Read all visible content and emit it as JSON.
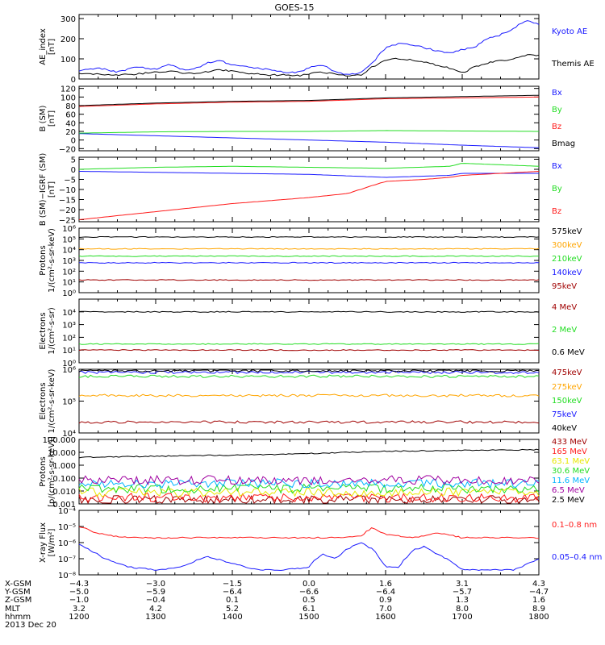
{
  "title": "GOES-15",
  "colors": {
    "blue": "#1a1aff",
    "black": "#000000",
    "red": "#ff1a1a",
    "green": "#22dd22",
    "dkred": "#a00000",
    "orange": "#ffa500",
    "yellow": "#e8e800",
    "cyan": "#00b4ff",
    "brown": "#a0522d",
    "purple": "#a000a0"
  },
  "chart_data": [
    {
      "id": "ae",
      "type": "line",
      "scale": "linear",
      "ylabel": [
        "AE_index",
        "[nT]"
      ],
      "ylim": [
        0,
        320
      ],
      "yticks": [
        "0",
        "100",
        "200",
        "300"
      ],
      "ytick_values": [
        0,
        100,
        200,
        300
      ],
      "series": [
        {
          "name": "Kyoto AE",
          "color": "blue",
          "x": [
            1200,
            1215,
            1230,
            1245,
            1300,
            1310,
            1320,
            1330,
            1340,
            1350,
            1400,
            1410,
            1420,
            1430,
            1440,
            1450,
            1500,
            1510,
            1520,
            1530,
            1540,
            1550,
            1600,
            1610,
            1620,
            1630,
            1640,
            1650,
            1700,
            1710,
            1720,
            1730,
            1740,
            1750,
            1800
          ],
          "y": [
            40,
            55,
            35,
            60,
            50,
            75,
            45,
            50,
            80,
            90,
            70,
            60,
            55,
            45,
            35,
            30,
            55,
            70,
            40,
            20,
            30,
            80,
            160,
            175,
            170,
            155,
            140,
            130,
            145,
            160,
            200,
            220,
            250,
            290,
            270
          ]
        },
        {
          "name": "Themis AE",
          "color": "black",
          "x": [
            1200,
            1215,
            1230,
            1245,
            1300,
            1310,
            1320,
            1330,
            1340,
            1350,
            1400,
            1410,
            1420,
            1430,
            1440,
            1450,
            1500,
            1510,
            1520,
            1530,
            1540,
            1550,
            1600,
            1610,
            1620,
            1630,
            1640,
            1650,
            1700,
            1710,
            1720,
            1730,
            1740,
            1750,
            1800
          ],
          "y": [
            30,
            25,
            20,
            25,
            35,
            40,
            30,
            25,
            35,
            45,
            40,
            30,
            25,
            20,
            20,
            15,
            25,
            35,
            25,
            15,
            20,
            60,
            95,
            100,
            95,
            85,
            70,
            55,
            30,
            60,
            80,
            90,
            100,
            120,
            115
          ]
        }
      ]
    },
    {
      "id": "bsm",
      "type": "line",
      "scale": "linear",
      "ylabel": [
        "B (SM)",
        "[nT]"
      ],
      "ylim": [
        -25,
        125
      ],
      "yticks": [
        "−20",
        "0",
        "20",
        "40",
        "60",
        "80",
        "100",
        "120"
      ],
      "ytick_values": [
        -20,
        0,
        20,
        40,
        60,
        80,
        100,
        120
      ],
      "series": [
        {
          "name": "Bx",
          "color": "blue",
          "x": [
            1200,
            1300,
            1400,
            1500,
            1600,
            1700,
            1800
          ],
          "y": [
            15,
            10,
            5,
            0,
            -5,
            -12,
            -18
          ]
        },
        {
          "name": "By",
          "color": "green",
          "x": [
            1200,
            1300,
            1400,
            1500,
            1600,
            1700,
            1800
          ],
          "y": [
            16,
            19,
            20,
            20,
            22,
            21,
            20
          ]
        },
        {
          "name": "Bz",
          "color": "red",
          "x": [
            1200,
            1300,
            1400,
            1500,
            1600,
            1700,
            1800
          ],
          "y": [
            78,
            84,
            88,
            90,
            96,
            98,
            100
          ]
        },
        {
          "name": "Bmag",
          "color": "black",
          "x": [
            1200,
            1300,
            1400,
            1500,
            1600,
            1700,
            1800
          ],
          "y": [
            80,
            86,
            90,
            92,
            98,
            101,
            104
          ]
        }
      ]
    },
    {
      "id": "bsmigrf",
      "type": "line",
      "scale": "linear",
      "ylabel": [
        "B (SM)−IGRF (SM)",
        "[nT]"
      ],
      "ylim": [
        -26,
        6
      ],
      "yticks": [
        "−25",
        "−20",
        "−15",
        "−10",
        "−5",
        "0",
        "5"
      ],
      "ytick_values": [
        -25,
        -20,
        -15,
        -10,
        -5,
        0,
        5
      ],
      "series": [
        {
          "name": "Bx",
          "color": "blue",
          "x": [
            1200,
            1300,
            1400,
            1500,
            1600,
            1650,
            1700,
            1800
          ],
          "y": [
            -1,
            -1.5,
            -2,
            -2.5,
            -4,
            -3,
            -2,
            -2
          ]
        },
        {
          "name": "By",
          "color": "green",
          "x": [
            1200,
            1300,
            1400,
            1500,
            1600,
            1650,
            1700,
            1800
          ],
          "y": [
            0,
            1,
            1.5,
            1,
            0.5,
            1.5,
            3,
            1.5
          ]
        },
        {
          "name": "Bz",
          "color": "red",
          "x": [
            1200,
            1230,
            1300,
            1400,
            1500,
            1530,
            1550,
            1600,
            1630,
            1650,
            1700,
            1730,
            1800
          ],
          "y": [
            -25,
            -23,
            -21,
            -17,
            -14,
            -12,
            -8,
            -6,
            -5,
            -4,
            -3,
            -2,
            -1
          ]
        }
      ]
    },
    {
      "id": "protons1",
      "type": "line",
      "scale": "log",
      "ylabel": [
        "Protons",
        "1/(cm²-s-sr-keV)"
      ],
      "ylim": [
        1,
        1000000
      ],
      "yticks": [
        "10⁰",
        "10¹",
        "10²",
        "10³",
        "10⁴",
        "10⁵",
        "10⁶"
      ],
      "ytick_values": [
        1,
        10,
        100,
        1000,
        10000,
        100000,
        1000000
      ],
      "series": [
        {
          "name": "575keV",
          "color": "black",
          "x": [
            1200,
            1800
          ],
          "y": [
            150000,
            150000
          ]
        },
        {
          "name": "300keV",
          "color": "orange",
          "x": [
            1200,
            1800
          ],
          "y": [
            12000,
            12000
          ]
        },
        {
          "name": "210keV",
          "color": "green",
          "x": [
            1200,
            1800
          ],
          "y": [
            2500,
            2500
          ]
        },
        {
          "name": "140keV",
          "color": "blue",
          "x": [
            1200,
            1800
          ],
          "y": [
            600,
            600
          ]
        },
        {
          "name": "95keV",
          "color": "dkred",
          "x": [
            1200,
            1800
          ],
          "y": [
            15,
            15
          ]
        }
      ]
    },
    {
      "id": "electrons1",
      "type": "line",
      "scale": "log",
      "ylabel": [
        "Electrons",
        "1/(cm²-s-sr)"
      ],
      "ylim": [
        1,
        100000
      ],
      "yticks": [
        "10⁰",
        "10¹",
        "10²",
        "10³",
        "10⁴"
      ],
      "ytick_values": [
        1,
        10,
        100,
        1000,
        10000
      ],
      "series": [
        {
          "name": "4 MeV",
          "color": "dkred",
          "x": [
            1200,
            1800
          ],
          "y": [
            10,
            10
          ]
        },
        {
          "name": "2 MeV",
          "color": "green",
          "x": [
            1200,
            1800
          ],
          "y": [
            30,
            30
          ]
        },
        {
          "name": "0.6 MeV",
          "color": "black",
          "x": [
            1200,
            1800
          ],
          "y": [
            10000,
            10000
          ]
        }
      ]
    },
    {
      "id": "electrons2",
      "type": "line",
      "scale": "log",
      "ylabel": [
        "Electrons",
        "1/(cm²-s-sr-keV)"
      ],
      "ylim": [
        10000,
        1000000
      ],
      "yticks": [
        "10⁴",
        "10⁵",
        "10⁶"
      ],
      "ytick_values": [
        10000,
        100000,
        1000000
      ],
      "series": [
        {
          "name": "475keV",
          "color": "dkred",
          "x": [
            1200,
            1800
          ],
          "y": [
            22000,
            22000
          ]
        },
        {
          "name": "275keV",
          "color": "orange",
          "x": [
            1200,
            1800
          ],
          "y": [
            150000,
            150000
          ]
        },
        {
          "name": "150keV",
          "color": "green",
          "x": [
            1200,
            1800
          ],
          "y": [
            600000,
            600000
          ]
        },
        {
          "name": "75keV",
          "color": "blue",
          "x": [
            1200,
            1800
          ],
          "y": [
            800000,
            800000
          ]
        },
        {
          "name": "40keV",
          "color": "black",
          "x": [
            1200,
            1800
          ],
          "y": [
            900000,
            900000
          ]
        }
      ]
    },
    {
      "id": "protons2",
      "type": "line",
      "scale": "log",
      "ylabel": [
        "Protons",
        "[p/(cm²-s-sr-keV)]"
      ],
      "ylim": [
        0.001,
        100
      ],
      "yticks": [
        "0.001",
        "0.010",
        "0.100",
        "1.000",
        "10.000",
        "100.000"
      ],
      "ytick_values": [
        0.001,
        0.01,
        0.1,
        1,
        10,
        100
      ],
      "series": [
        {
          "name": "433 MeV",
          "color": "dkred",
          "x": [
            1200,
            1800
          ],
          "y": [
            0.002,
            0.002
          ]
        },
        {
          "name": "165 MeV",
          "color": "red",
          "x": [
            1200,
            1800
          ],
          "y": [
            0.003,
            0.003
          ]
        },
        {
          "name": "63.1 MeV",
          "color": "yellow",
          "x": [
            1200,
            1800
          ],
          "y": [
            0.008,
            0.008
          ]
        },
        {
          "name": "30.6 MeV",
          "color": "green",
          "x": [
            1200,
            1800
          ],
          "y": [
            0.015,
            0.015
          ]
        },
        {
          "name": "11.6 MeV",
          "color": "cyan",
          "x": [
            1200,
            1800
          ],
          "y": [
            0.04,
            0.04
          ]
        },
        {
          "name": "6.5 MeV",
          "color": "purple",
          "x": [
            1200,
            1800
          ],
          "y": [
            0.07,
            0.07
          ]
        },
        {
          "name": "2.5 MeV",
          "color": "black",
          "x": [
            1200,
            1300,
            1400,
            1500,
            1600,
            1700,
            1800
          ],
          "y": [
            4,
            5,
            6,
            8,
            12,
            14,
            16
          ]
        }
      ]
    },
    {
      "id": "xray",
      "type": "line",
      "scale": "log",
      "ylabel": [
        "X-ray Flux",
        "[W/m²]"
      ],
      "ylim": [
        1e-08,
        0.0001
      ],
      "yticks": [
        "10⁻⁸",
        "10⁻⁷",
        "10⁻⁶",
        "10⁻⁵",
        "10⁻⁴"
      ],
      "ytick_values": [
        1e-08,
        1e-07,
        1e-06,
        1e-05,
        0.0001
      ],
      "series": [
        {
          "name": "0.1–0.8 nm",
          "color": "red",
          "x": [
            1200,
            1210,
            1220,
            1240,
            1300,
            1350,
            1400,
            1420,
            1440,
            1500,
            1520,
            1540,
            1550,
            1600,
            1620,
            1630,
            1640,
            1650,
            1700,
            1720,
            1740,
            1800
          ],
          "y": [
            1e-05,
            5e-06,
            3e-06,
            2e-06,
            2e-06,
            2e-06,
            2e-06,
            2e-06,
            2e-06,
            2e-06,
            2e-06,
            2.5e-06,
            9e-06,
            3e-06,
            2.2e-06,
            2.5e-06,
            4e-06,
            3e-06,
            2e-06,
            2e-06,
            2e-06,
            2e-06
          ]
        },
        {
          "name": "0.05–0.4 nm",
          "color": "blue",
          "x": [
            1200,
            1210,
            1220,
            1240,
            1300,
            1320,
            1340,
            1400,
            1420,
            1440,
            1500,
            1510,
            1520,
            1530,
            1540,
            1550,
            1600,
            1610,
            1620,
            1630,
            1640,
            1650,
            1700,
            1720,
            1740,
            1800
          ],
          "y": [
            8e-07,
            3e-07,
            1e-07,
            3e-08,
            2e-08,
            3e-08,
            1.5e-07,
            5e-08,
            2e-08,
            2e-08,
            3e-08,
            2e-07,
            1e-07,
            4e-07,
            1e-06,
            4e-07,
            3e-08,
            3e-08,
            3e-07,
            6e-07,
            2e-07,
            8e-08,
            2e-08,
            2e-08,
            2e-08,
            1e-07
          ]
        }
      ]
    }
  ],
  "x_axis": {
    "xlim": [
      1200,
      1800
    ],
    "ticks": [
      1200,
      1300,
      1400,
      1500,
      1600,
      1700,
      1800
    ],
    "rows": [
      {
        "label": "X-GSM",
        "values": [
          "−4.3",
          "−3.0",
          "−1.5",
          "0.0",
          "1.6",
          "3.1",
          "4.3"
        ]
      },
      {
        "label": "Y-GSM",
        "values": [
          "−5.0",
          "−5.9",
          "−6.4",
          "−6.6",
          "−6.4",
          "−5.7",
          "−4.7"
        ]
      },
      {
        "label": "Z-GSM",
        "values": [
          "−1.0",
          "−0.4",
          "0.1",
          "0.5",
          "0.9",
          "1.3",
          "1.6"
        ]
      },
      {
        "label": "MLT",
        "values": [
          "3.2",
          "4.2",
          "5.2",
          "6.1",
          "7.0",
          "8.0",
          "8.9"
        ]
      },
      {
        "label": "hhmm",
        "values": [
          "1200",
          "1300",
          "1400",
          "1500",
          "1600",
          "1700",
          "1800"
        ]
      }
    ],
    "date": "2013 Dec 20"
  }
}
